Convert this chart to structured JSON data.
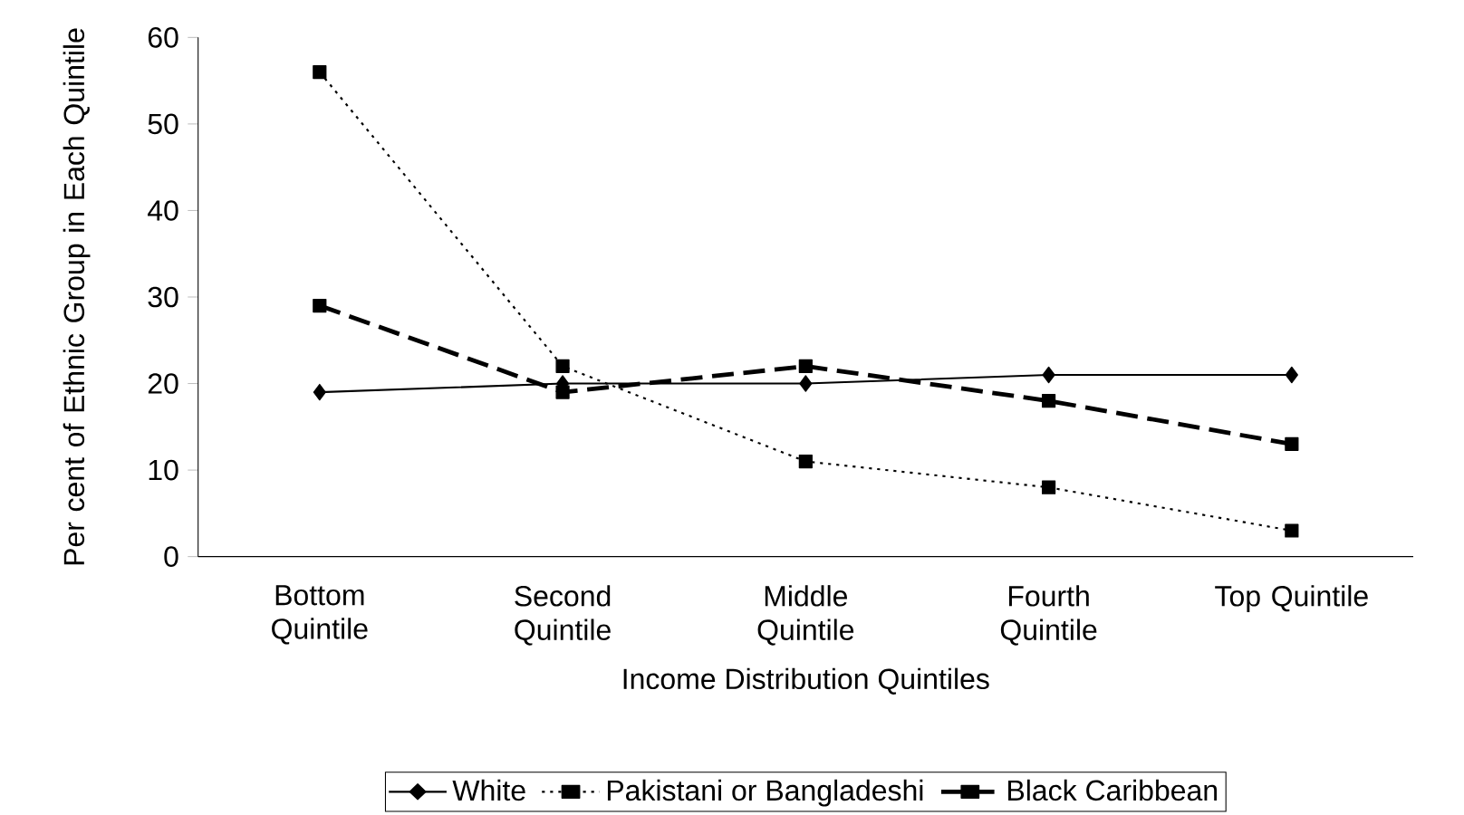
{
  "chart_data": {
    "type": "line",
    "xlabel": "Income Distribution Quintiles",
    "ylabel": "Per cent of Ethnic Group in Each Quintile",
    "categories": [
      "Bottom Quintile",
      "Second Quintile",
      "Middle Quintile",
      "Fourth Quintile",
      "Top Quintile"
    ],
    "ylim": [
      0,
      60
    ],
    "yticks": [
      0,
      10,
      20,
      30,
      40,
      50,
      60
    ],
    "legend": "bottom",
    "grid": false,
    "series": [
      {
        "name": "White",
        "color": "#000000",
        "values": [
          19,
          20,
          20,
          21,
          21
        ],
        "marker": "diamond",
        "line_style": "solid"
      },
      {
        "name": "Pakistani or Bangladeshi",
        "color": "#000000",
        "values": [
          56,
          22,
          11,
          8,
          3
        ],
        "marker": "square",
        "line_style": "dotted"
      },
      {
        "name": "Black Caribbean",
        "color": "#000000",
        "values": [
          29,
          19,
          22,
          18,
          13
        ],
        "marker": "square",
        "line_style": "dashed"
      }
    ]
  }
}
